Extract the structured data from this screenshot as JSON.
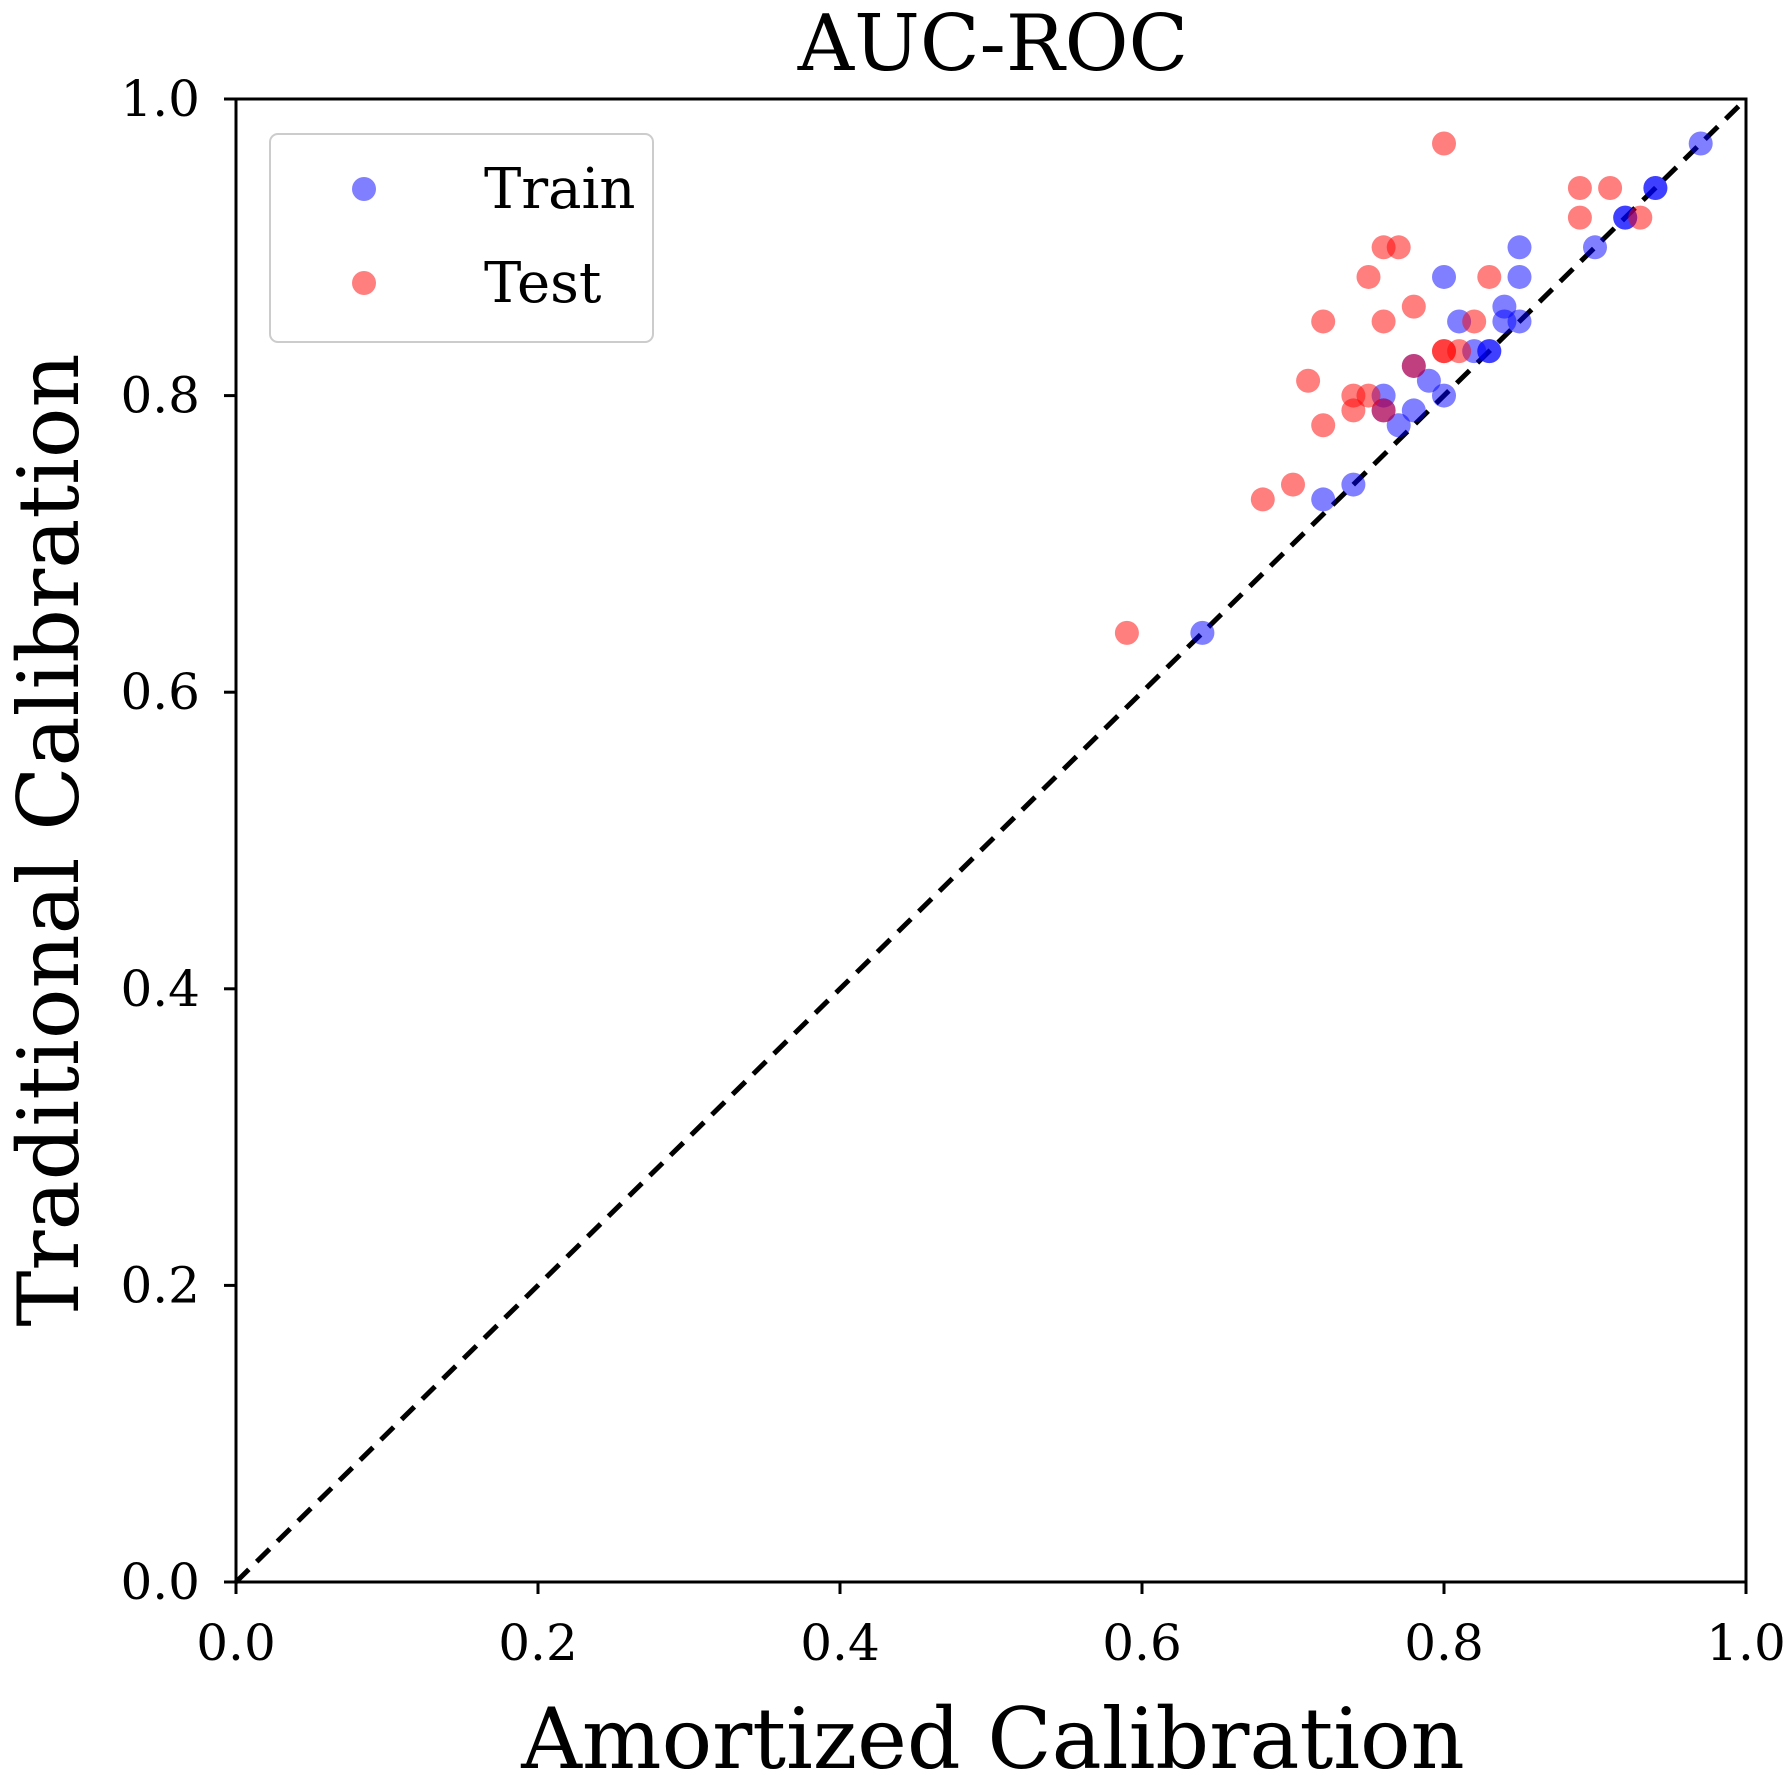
{
  "chart_data": {
    "type": "scatter",
    "title": "AUC-ROC",
    "xlabel": "Amortized Calibration",
    "ylabel": "Traditional Calibration",
    "xlim": [
      0.0,
      1.0
    ],
    "ylim": [
      0.0,
      1.0
    ],
    "xticks": [
      "0.0",
      "0.2",
      "0.4",
      "0.6",
      "0.8",
      "1.0"
    ],
    "yticks": [
      "0.0",
      "0.2",
      "0.4",
      "0.6",
      "0.8",
      "1.0"
    ],
    "grid": false,
    "legend_position": "top-left",
    "reference_line": {
      "style": "dashed",
      "color": "#000000",
      "from": [
        0.0,
        0.0
      ],
      "to": [
        1.0,
        1.0
      ]
    },
    "series": [
      {
        "name": "Train",
        "color": "#0000ff",
        "opacity": 0.5,
        "points": [
          [
            0.97,
            0.97
          ],
          [
            0.94,
            0.94
          ],
          [
            0.94,
            0.94
          ],
          [
            0.92,
            0.92
          ],
          [
            0.92,
            0.92
          ],
          [
            0.9,
            0.9
          ],
          [
            0.85,
            0.9
          ],
          [
            0.85,
            0.88
          ],
          [
            0.85,
            0.85
          ],
          [
            0.84,
            0.86
          ],
          [
            0.84,
            0.85
          ],
          [
            0.83,
            0.83
          ],
          [
            0.83,
            0.83
          ],
          [
            0.82,
            0.83
          ],
          [
            0.81,
            0.85
          ],
          [
            0.8,
            0.88
          ],
          [
            0.8,
            0.8
          ],
          [
            0.79,
            0.81
          ],
          [
            0.78,
            0.82
          ],
          [
            0.78,
            0.79
          ],
          [
            0.77,
            0.78
          ],
          [
            0.76,
            0.8
          ],
          [
            0.76,
            0.79
          ],
          [
            0.74,
            0.74
          ],
          [
            0.72,
            0.73
          ],
          [
            0.64,
            0.64
          ]
        ]
      },
      {
        "name": "Test",
        "color": "#ff0000",
        "opacity": 0.5,
        "points": [
          [
            0.8,
            0.97
          ],
          [
            0.89,
            0.94
          ],
          [
            0.91,
            0.94
          ],
          [
            0.89,
            0.92
          ],
          [
            0.93,
            0.92
          ],
          [
            0.76,
            0.9
          ],
          [
            0.77,
            0.9
          ],
          [
            0.75,
            0.88
          ],
          [
            0.83,
            0.88
          ],
          [
            0.78,
            0.86
          ],
          [
            0.72,
            0.85
          ],
          [
            0.76,
            0.85
          ],
          [
            0.82,
            0.85
          ],
          [
            0.8,
            0.83
          ],
          [
            0.8,
            0.83
          ],
          [
            0.81,
            0.83
          ],
          [
            0.78,
            0.82
          ],
          [
            0.71,
            0.81
          ],
          [
            0.74,
            0.8
          ],
          [
            0.75,
            0.8
          ],
          [
            0.74,
            0.79
          ],
          [
            0.76,
            0.79
          ],
          [
            0.72,
            0.78
          ],
          [
            0.7,
            0.74
          ],
          [
            0.68,
            0.73
          ],
          [
            0.59,
            0.64
          ]
        ]
      }
    ]
  }
}
